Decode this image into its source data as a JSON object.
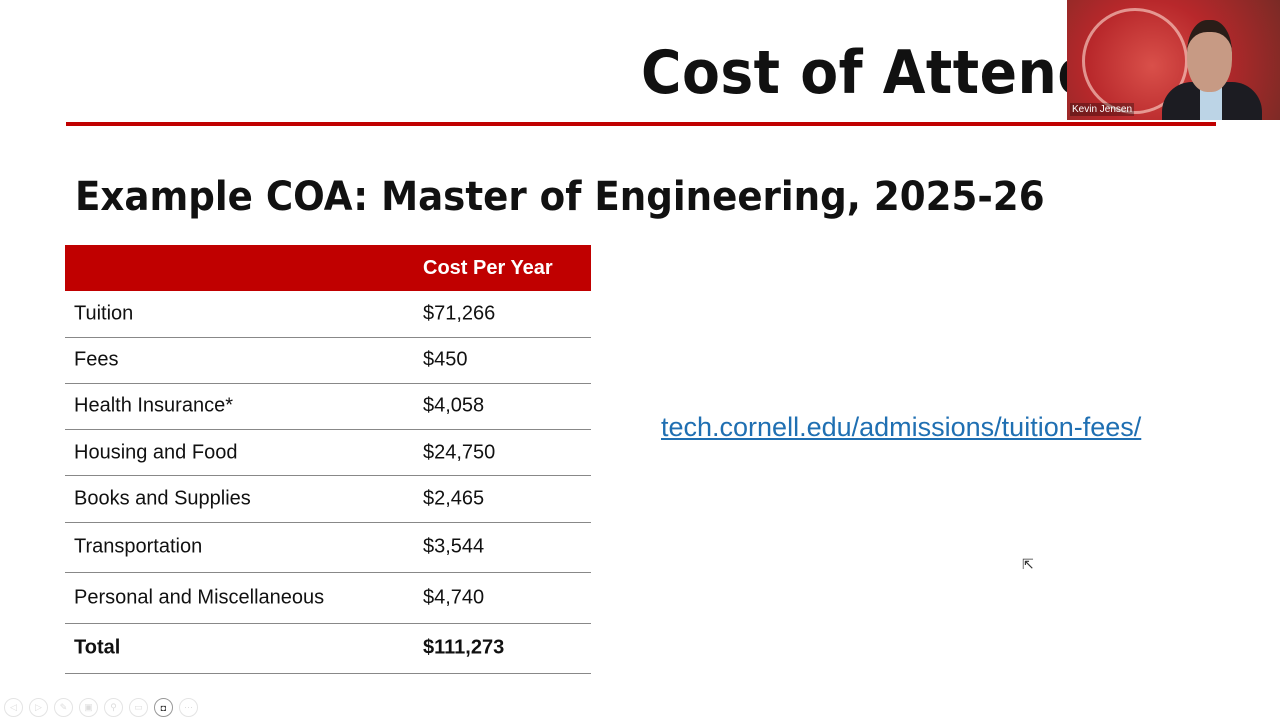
{
  "slide": {
    "title": "Cost of Attend",
    "heading": "Example COA: Master of Engineering, 2025-26",
    "link": "tech.cornell.edu/admissions/tuition-fees/",
    "accent_color": "#c00000"
  },
  "table": {
    "header": [
      "",
      "Cost Per Year"
    ],
    "rows": [
      {
        "label": "Tuition",
        "value": "$71,266"
      },
      {
        "label": "Fees",
        "value": "$450"
      },
      {
        "label": "Health Insurance*",
        "value": "$4,058"
      },
      {
        "label": "Housing and Food",
        "value": "$24,750"
      },
      {
        "label": "Books and Supplies",
        "value": "$2,465"
      },
      {
        "label": "Transportation",
        "value": "$3,544"
      },
      {
        "label": "Personal and Miscellaneous",
        "value": "$4,740"
      }
    ],
    "total": {
      "label": "Total",
      "value": "$111,273"
    }
  },
  "video": {
    "participant_name": "Kevin Jensen"
  },
  "controls": {
    "icons": [
      "previous-icon",
      "next-icon",
      "pen-icon",
      "slides-icon",
      "zoom-icon",
      "subtitles-icon",
      "camera-icon",
      "more-icon"
    ],
    "glyphs": [
      "◁",
      "▷",
      "✎",
      "▣",
      "⚲",
      "▭",
      "◘",
      "⋯"
    ]
  }
}
